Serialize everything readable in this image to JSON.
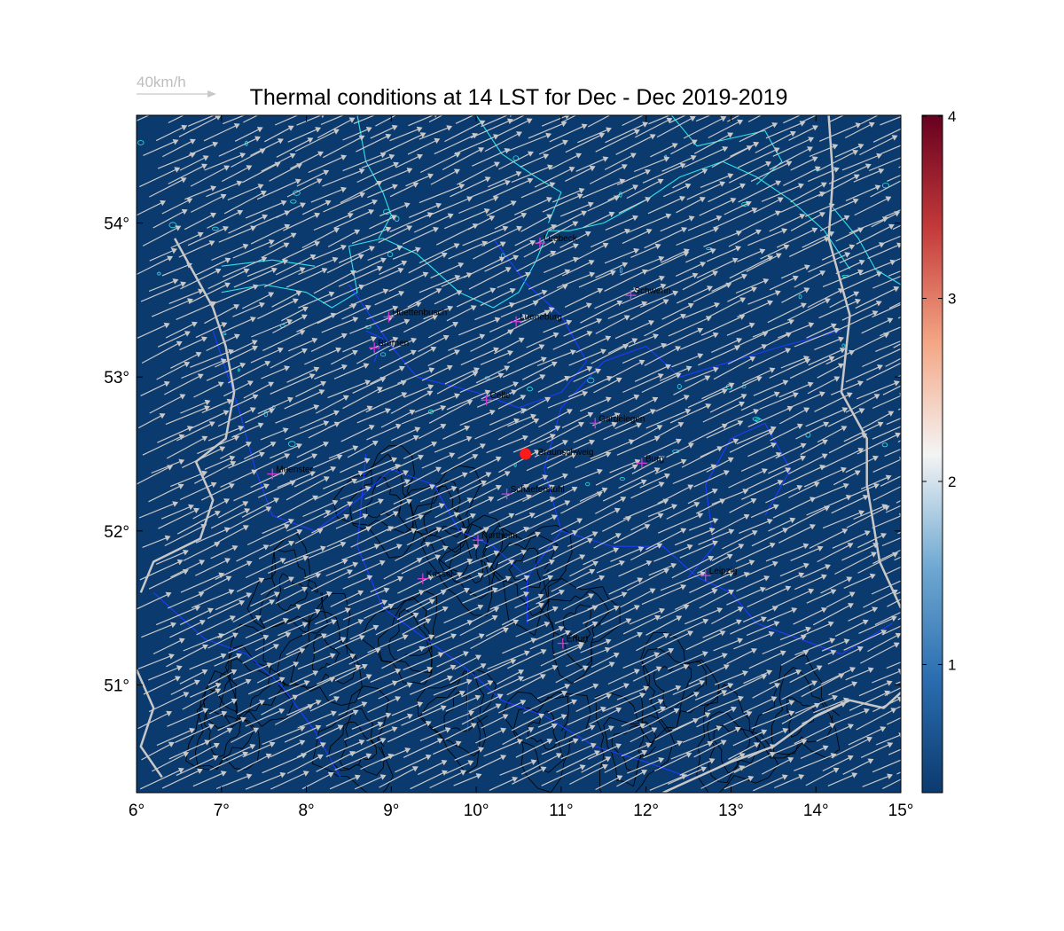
{
  "title": "Thermal conditions at 14 LST for Dec - Dec  2019-2019",
  "reference_vector": {
    "label": "40km/h",
    "speed_kmh": 40
  },
  "map": {
    "lon_range": [
      6,
      15
    ],
    "lat_range": [
      50.3,
      54.7
    ],
    "background_color": "#0b3a6e",
    "x_ticks": [
      {
        "value": 6,
        "label": "6°"
      },
      {
        "value": 7,
        "label": "7°"
      },
      {
        "value": 8,
        "label": "8°"
      },
      {
        "value": 9,
        "label": "9°"
      },
      {
        "value": 10,
        "label": "10°"
      },
      {
        "value": 11,
        "label": "11°"
      },
      {
        "value": 12,
        "label": "12°"
      },
      {
        "value": 13,
        "label": "13°"
      },
      {
        "value": 14,
        "label": "14°"
      },
      {
        "value": 15,
        "label": "15°"
      }
    ],
    "y_ticks": [
      {
        "value": 51,
        "label": "51°"
      },
      {
        "value": 52,
        "label": "52°"
      },
      {
        "value": 53,
        "label": "53°"
      },
      {
        "value": 54,
        "label": "54°"
      }
    ],
    "colors": {
      "coastline": "#2fe3e8",
      "state_border": "#1e3cff",
      "country_border": "#c8c8c8",
      "terrain_contour": "#000000",
      "wind_arrow": "#c8c8c8",
      "city_marker": "#d23cd2",
      "home_marker": "#ff1a1a"
    },
    "wind": {
      "direction_deg_from": 245,
      "dominant": "south-west"
    },
    "cities": [
      {
        "name": "Luebeck",
        "lon": 10.75,
        "lat": 53.87
      },
      {
        "name": "Schwerin",
        "lon": 11.82,
        "lat": 53.53
      },
      {
        "name": "Huettenbusch",
        "lon": 8.97,
        "lat": 53.39
      },
      {
        "name": "Lueneburg",
        "lon": 10.47,
        "lat": 53.36
      },
      {
        "name": "Bremen",
        "lon": 8.8,
        "lat": 53.19
      },
      {
        "name": "Celle",
        "lon": 10.12,
        "lat": 52.85
      },
      {
        "name": "Gardelegen",
        "lon": 11.4,
        "lat": 52.7
      },
      {
        "name": "Muenster",
        "lon": 7.6,
        "lat": 52.37
      },
      {
        "name": "Burg",
        "lon": 11.95,
        "lat": 52.44
      },
      {
        "name": "Schaeferstuhl",
        "lon": 10.36,
        "lat": 52.24
      },
      {
        "name": "Northeim",
        "lon": 10.02,
        "lat": 51.94
      },
      {
        "name": "Kassel",
        "lon": 9.37,
        "lat": 51.69
      },
      {
        "name": "Leipzig",
        "lon": 12.7,
        "lat": 51.71
      },
      {
        "name": "Erfurt",
        "lon": 11.02,
        "lat": 51.27
      }
    ],
    "home": {
      "name": "Braunschweig",
      "lon": 10.58,
      "lat": 52.5
    }
  },
  "colorbar": {
    "min": 0.3,
    "max": 4,
    "ticks": [
      {
        "value": 1,
        "label": "1"
      },
      {
        "value": 2,
        "label": "2"
      },
      {
        "value": 3,
        "label": "3"
      },
      {
        "value": 4,
        "label": "4"
      }
    ],
    "stops": [
      "#0b3a6e",
      "#2a6db0",
      "#6fa9d2",
      "#f4f4f4",
      "#f4a583",
      "#c43a3a",
      "#67001f"
    ]
  }
}
